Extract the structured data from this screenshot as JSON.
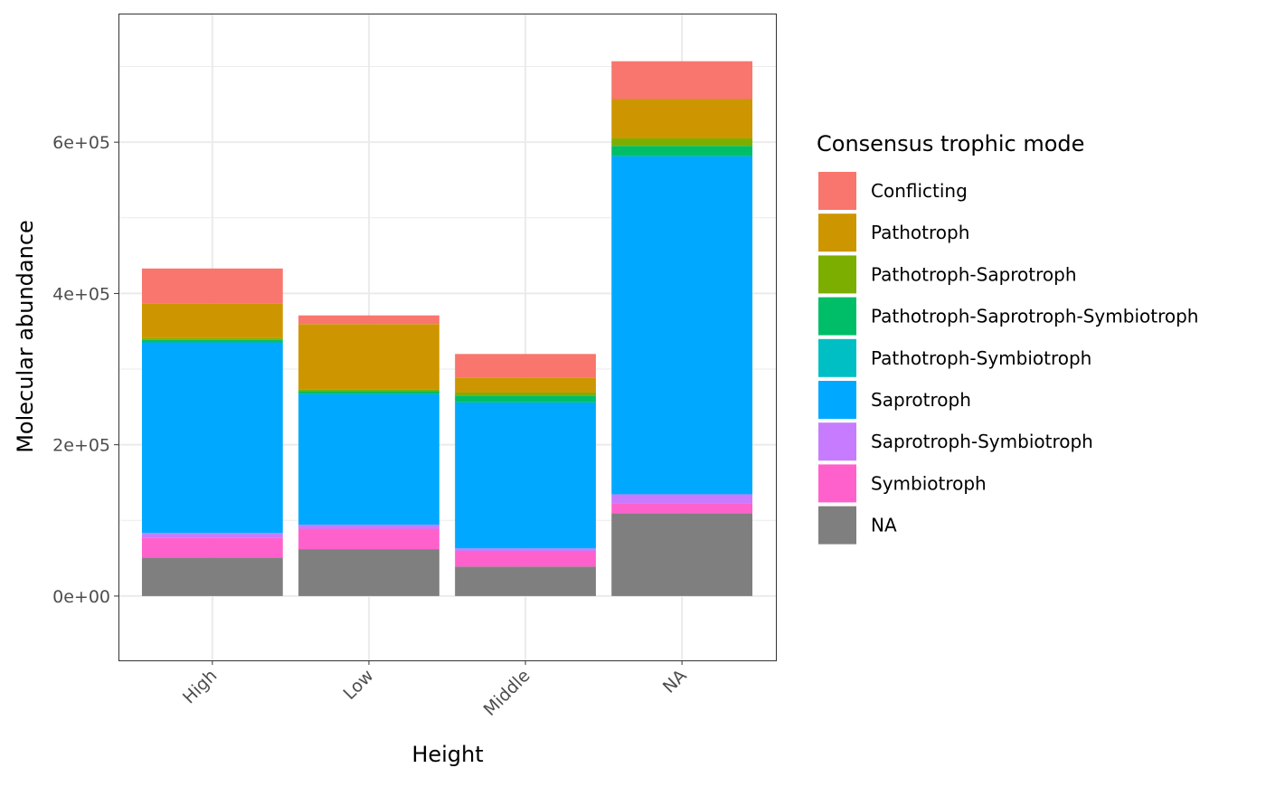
{
  "chart_data": {
    "type": "bar",
    "stacked": true,
    "title": "",
    "xlabel": "Height",
    "ylabel": "Molecular abundance",
    "categories": [
      "High",
      "Low",
      "Middle",
      "NA"
    ],
    "ylim": [
      -85000,
      770000
    ],
    "yticks": [
      0,
      200000,
      400000,
      600000
    ],
    "ytick_labels": [
      "0e+00",
      "2e+05",
      "4e+05",
      "6e+05"
    ],
    "grid": true,
    "legend_title": "Consensus trophic mode",
    "legend_position": "right",
    "series": [
      {
        "name": "Conflicting",
        "color": "#F8766D",
        "values": [
          46400,
          11500,
          31000,
          50000
        ]
      },
      {
        "name": "Pathotroph",
        "color": "#CD9600",
        "values": [
          45700,
          86100,
          20000,
          52000
        ]
      },
      {
        "name": "Pathotroph-Saprotroph",
        "color": "#7CAE00",
        "values": [
          2400,
          2200,
          4000,
          10000
        ]
      },
      {
        "name": "Pathotroph-Saprotroph-Symbiotroph",
        "color": "#00BE67",
        "values": [
          3200,
          4200,
          9000,
          13500
        ]
      },
      {
        "name": "Pathotroph-Symbiotroph",
        "color": "#00BFC4",
        "values": [
          0,
          0,
          0,
          0
        ]
      },
      {
        "name": "Saprotroph",
        "color": "#00A9FF",
        "values": [
          251800,
          172600,
          193000,
          447000
        ]
      },
      {
        "name": "Saprotroph-Symbiotroph",
        "color": "#C77CFF",
        "values": [
          6100,
          5400,
          3300,
          11900
        ]
      },
      {
        "name": "Symbiotroph",
        "color": "#FF61CC",
        "values": [
          26400,
          27000,
          20700,
          13000
        ]
      },
      {
        "name": "NA",
        "color": "#7F7F7F",
        "values": [
          51000,
          62000,
          39000,
          109600
        ]
      }
    ]
  }
}
